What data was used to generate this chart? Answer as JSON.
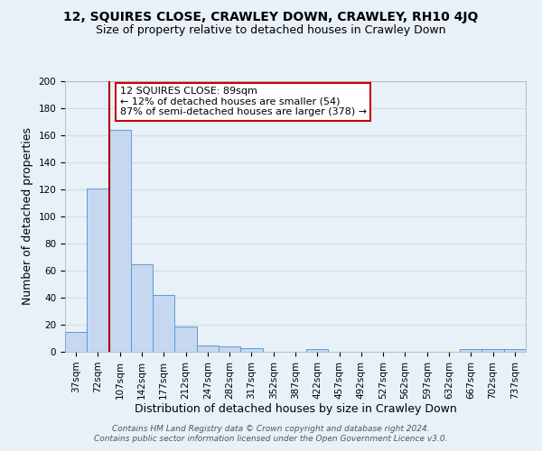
{
  "title": "12, SQUIRES CLOSE, CRAWLEY DOWN, CRAWLEY, RH10 4JQ",
  "subtitle": "Size of property relative to detached houses in Crawley Down",
  "xlabel": "Distribution of detached houses by size in Crawley Down",
  "ylabel": "Number of detached properties",
  "bar_labels": [
    "37sqm",
    "72sqm",
    "107sqm",
    "142sqm",
    "177sqm",
    "212sqm",
    "247sqm",
    "282sqm",
    "317sqm",
    "352sqm",
    "387sqm",
    "422sqm",
    "457sqm",
    "492sqm",
    "527sqm",
    "562sqm",
    "597sqm",
    "632sqm",
    "667sqm",
    "702sqm",
    "737sqm"
  ],
  "bar_values": [
    15,
    121,
    164,
    65,
    42,
    19,
    5,
    4,
    3,
    0,
    0,
    2,
    0,
    0,
    0,
    0,
    0,
    0,
    2,
    2,
    2
  ],
  "bar_color": "#c5d8f0",
  "bar_edge_color": "#5b9bd5",
  "ylim": [
    0,
    200
  ],
  "yticks": [
    0,
    20,
    40,
    60,
    80,
    100,
    120,
    140,
    160,
    180,
    200
  ],
  "vline_x": 1.5,
  "vline_color": "#aa0000",
  "annotation_text": "12 SQUIRES CLOSE: 89sqm\n← 12% of detached houses are smaller (54)\n87% of semi-detached houses are larger (378) →",
  "annotation_box_color": "#ffffff",
  "annotation_box_edge": "#cc0000",
  "footer_line1": "Contains HM Land Registry data © Crown copyright and database right 2024.",
  "footer_line2": "Contains public sector information licensed under the Open Government Licence v3.0.",
  "bg_color": "#e8f0f8",
  "plot_bg_color": "#e8f0f8",
  "grid_color": "#d0dde8",
  "title_fontsize": 10,
  "subtitle_fontsize": 9,
  "axis_label_fontsize": 9,
  "tick_fontsize": 7.5,
  "footer_fontsize": 6.5,
  "annotation_fontsize": 8
}
